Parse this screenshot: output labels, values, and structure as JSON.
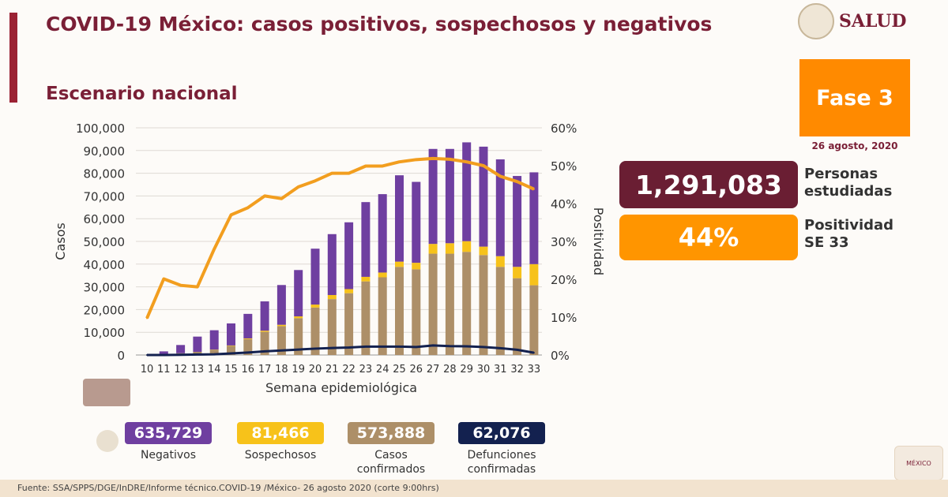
{
  "header": {
    "title": "COVID-19 México: casos positivos, sospechosos y negativos",
    "subtitle": "Escenario nacional",
    "logo_text": "SALUD"
  },
  "phase": {
    "label": "Fase 3",
    "date": "26 agosto, 2020"
  },
  "kpis": {
    "personas_value": "1,291,083",
    "personas_label_1": "Personas",
    "personas_label_2": "estudiadas",
    "positividad_value": "44%",
    "positividad_label_1": "Positividad",
    "positividad_label_2": "SE 33"
  },
  "totals": [
    {
      "value": "635,729",
      "label": "Negativos",
      "label2": "",
      "color": "#6f3fa0"
    },
    {
      "value": "81,466",
      "label": "Sospechosos",
      "label2": "",
      "color": "#f7c21a"
    },
    {
      "value": "573,888",
      "label": "Casos",
      "label2": "confirmados",
      "color": "#ad8f68"
    },
    {
      "value": "62,076",
      "label": "Defunciones",
      "label2": "confirmadas",
      "color": "#13214f"
    }
  ],
  "footer": {
    "source": "Fuente: SSA/SPPS/DGE/InDRE/Informe técnico.COVID-19 /México- 26 agosto 2020 (corte 9:00hrs)"
  },
  "seal_text": "MÉXICO",
  "chart_data": {
    "type": "bar",
    "stacked": true,
    "xlabel": "Semana epidemiológica",
    "ylabel": "Casos",
    "y2label": "Positividad",
    "ylim": [
      0,
      100000
    ],
    "y2lim": [
      0,
      60
    ],
    "yticks": [
      "0",
      "10,000",
      "20,000",
      "30,000",
      "40,000",
      "50,000",
      "60,000",
      "70,000",
      "80,000",
      "90,000",
      "100,000"
    ],
    "y2ticks": [
      "0%",
      "10%",
      "20%",
      "30%",
      "40%",
      "50%",
      "60%"
    ],
    "categories": [
      "10",
      "11",
      "12",
      "13",
      "14",
      "15",
      "16",
      "17",
      "18",
      "19",
      "20",
      "21",
      "22",
      "23",
      "24",
      "25",
      "26",
      "27",
      "28",
      "29",
      "30",
      "31",
      "32",
      "33"
    ],
    "series": [
      {
        "name": "Casos confirmados",
        "color": "#ad8f68",
        "values": [
          0,
          300,
          800,
          1400,
          2300,
          4000,
          7000,
          10200,
          12700,
          16200,
          20900,
          24600,
          27200,
          32400,
          34200,
          38800,
          37700,
          44600,
          44600,
          45400,
          44000,
          38800,
          33800,
          30700
        ]
      },
      {
        "name": "Sospechosos",
        "color": "#f7c21a",
        "values": [
          0,
          0,
          0,
          0,
          100,
          200,
          300,
          500,
          600,
          800,
          1300,
          1800,
          1800,
          2000,
          2100,
          2300,
          2900,
          4300,
          4600,
          4700,
          3700,
          4700,
          5000,
          9300
        ]
      },
      {
        "name": "Negativos",
        "color": "#6f3fa0",
        "values": [
          0,
          1300,
          3600,
          6700,
          8500,
          9700,
          10800,
          12900,
          17500,
          20400,
          24600,
          26800,
          29400,
          32900,
          34500,
          38000,
          35600,
          41800,
          41500,
          43500,
          44000,
          42600,
          40000,
          40400
        ]
      }
    ],
    "lines": [
      {
        "name": "Positividad",
        "axis": "y2",
        "color": "#f29e1f",
        "values": [
          9.7,
          20.1,
          18.4,
          18,
          28,
          37,
          38.9,
          42,
          41.3,
          44.4,
          46,
          48,
          48,
          49.9,
          49.9,
          51,
          51.6,
          51.9,
          51.7,
          51,
          50,
          47.2,
          45.8,
          43.8
        ]
      },
      {
        "name": "Defunciones",
        "axis": "y",
        "color": "#13214f",
        "values": [
          0,
          0,
          100,
          200,
          300,
          700,
          1100,
          1600,
          2000,
          2400,
          2800,
          3100,
          3300,
          3700,
          3700,
          3700,
          3500,
          4200,
          3900,
          3800,
          3500,
          3000,
          2300,
          1000
        ]
      }
    ]
  }
}
